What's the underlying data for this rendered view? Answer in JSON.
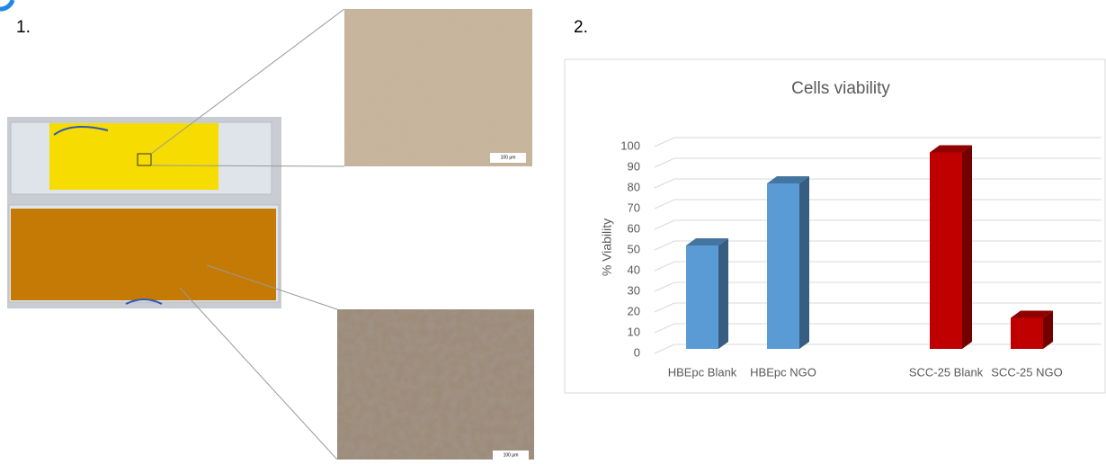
{
  "panel_1": {
    "label": "1.",
    "scale_bar_top": "100 μm",
    "scale_bar_bottom": "100 μm"
  },
  "panel_2": {
    "label": "2."
  },
  "chart_data": {
    "type": "bar",
    "title": "Cells viability",
    "y_label": "% Viability",
    "categories": [
      "HBEpc Blank",
      "HBEpc NGO",
      "SCC-25 Blank",
      "SCC-25 NGO"
    ],
    "values": [
      50,
      80,
      95,
      15
    ],
    "colors": [
      "#5b9bd5",
      "#5b9bd5",
      "#c00000",
      "#c00000"
    ],
    "ylim": [
      0,
      100
    ],
    "yticks": [
      0,
      10,
      20,
      30,
      40,
      50,
      60,
      70,
      80,
      90,
      100
    ],
    "grid": true
  }
}
